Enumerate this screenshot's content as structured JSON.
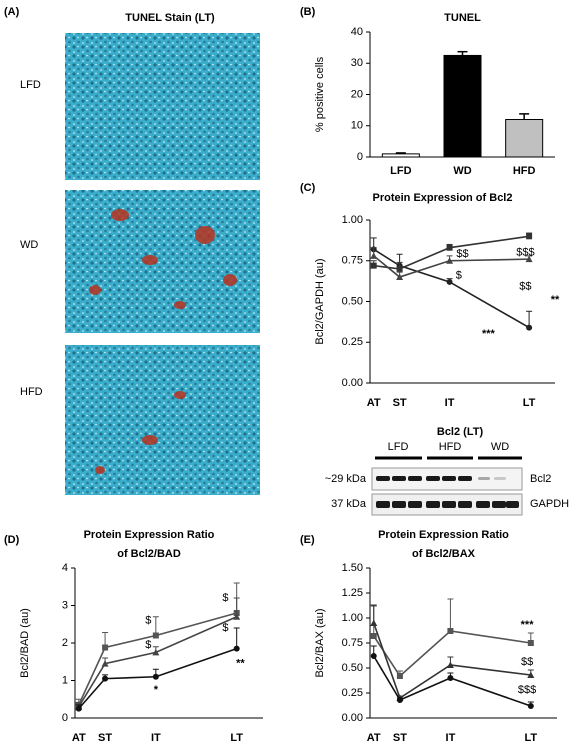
{
  "panel_labels": [
    "(A)",
    "(B)",
    "(C)",
    "(D)",
    "(E)"
  ],
  "tunel_stain": {
    "title": "TUNEL Stain (LT)",
    "rows": [
      "LFD",
      "WD",
      "HFD"
    ]
  },
  "blot": {
    "title": "Bcl2 (LT)",
    "lanes": [
      "LFD",
      "HFD",
      "WD"
    ],
    "rows": [
      {
        "size": "~29 kDa",
        "protein": "Bcl2"
      },
      {
        "size": "37 kDa",
        "protein": "GAPDH"
      }
    ]
  },
  "chart_data": [
    {
      "type": "bar",
      "title": "TUNEL",
      "ylabel": "% positive cells",
      "categories": [
        "LFD",
        "WD",
        "HFD"
      ],
      "values": [
        1,
        32.5,
        12
      ],
      "errors": [
        0.3,
        1.2,
        1.8
      ],
      "colors": [
        "#ffffff",
        "#000000",
        "#c0c0c0"
      ],
      "ylim": [
        0,
        40
      ],
      "yticks": [
        0,
        10,
        20,
        30,
        40
      ]
    },
    {
      "type": "line",
      "title": [
        "Protein Expression of Bcl2"
      ],
      "ylabel": "Bcl2/GAPDH (au)",
      "categories": [
        "AT",
        "ST",
        "IT",
        "LT"
      ],
      "ylim": [
        0,
        1
      ],
      "yticks": [
        {
          "value": 0,
          "label": "0.00"
        },
        {
          "value": 0.25,
          "label": "0.25"
        },
        {
          "value": 0.5,
          "label": "0.50"
        },
        {
          "value": 0.75,
          "label": "0.75"
        },
        {
          "value": 1,
          "label": "1.00"
        }
      ],
      "series": [
        {
          "marker": "circle",
          "color": "#222222",
          "values": [
            0.82,
            0.72,
            0.62,
            0.34
          ],
          "errors": [
            0.07,
            0.07,
            0.02,
            0.1
          ]
        },
        {
          "marker": "square",
          "color": "#333333",
          "values": [
            0.72,
            0.7,
            0.83,
            0.9
          ],
          "errors": [
            0.03,
            0.04,
            0.02,
            0.02
          ]
        },
        {
          "marker": "triangle",
          "color": "#444444",
          "values": [
            0.78,
            0.65,
            0.75,
            0.76
          ],
          "errors": [
            0.05,
            0.03,
            0.03,
            0.02
          ]
        }
      ],
      "annotations": [
        "**",
        "***",
        "$$$",
        "$$",
        "$",
        "$$"
      ]
    },
    {
      "type": "line",
      "title": [
        "Protein Expression Ratio",
        "of Bcl2/BAD"
      ],
      "ylabel": "Bcl2/BAD (au)",
      "categories": [
        "AT",
        "ST",
        "IT",
        "LT"
      ],
      "ylim": [
        0,
        4
      ],
      "yticks": [
        0,
        1,
        2,
        3,
        4
      ],
      "series": [
        {
          "marker": "square",
          "color": "#555555",
          "values": [
            0.35,
            1.88,
            2.2,
            2.8
          ],
          "errors": [
            0.15,
            0.4,
            0.5,
            0.8
          ]
        },
        {
          "marker": "triangle",
          "color": "#444444",
          "values": [
            0.3,
            1.45,
            1.75,
            2.7
          ],
          "errors": [
            0.1,
            0.15,
            0.15,
            0.5
          ]
        },
        {
          "marker": "circle",
          "color": "#111111",
          "values": [
            0.25,
            1.05,
            1.1,
            1.85
          ],
          "errors": [
            0.1,
            0.1,
            0.2,
            0.55
          ]
        }
      ],
      "annotations": [
        "$",
        "$",
        "*",
        "$",
        "$",
        "**"
      ]
    },
    {
      "type": "line",
      "title": [
        "Protein Expression Ratio",
        "of Bcl2/BAX"
      ],
      "ylabel": "Bcl2/BAX (au)",
      "categories": [
        "AT",
        "ST",
        "IT",
        "LT"
      ],
      "ylim": [
        0,
        1.5
      ],
      "yticks": [
        {
          "value": 0,
          "label": "0.00"
        },
        {
          "value": 0.25,
          "label": "0.25"
        },
        {
          "value": 0.5,
          "label": "0.50"
        },
        {
          "value": 0.75,
          "label": "0.75"
        },
        {
          "value": 1,
          "label": "1.00"
        },
        {
          "value": 1.25,
          "label": "1.25"
        },
        {
          "value": 1.5,
          "label": "1.50"
        }
      ],
      "series": [
        {
          "marker": "square",
          "color": "#555555",
          "values": [
            0.82,
            0.42,
            0.87,
            0.75
          ],
          "errors": [
            0.3,
            0.05,
            0.32,
            0.1
          ]
        },
        {
          "marker": "triangle",
          "color": "#333333",
          "values": [
            0.95,
            0.2,
            0.53,
            0.43
          ],
          "errors": [
            0.18,
            0.02,
            0.08,
            0.05
          ]
        },
        {
          "marker": "circle",
          "color": "#111111",
          "values": [
            0.62,
            0.18,
            0.4,
            0.12
          ],
          "errors": [
            0.1,
            0.02,
            0.05,
            0.04
          ]
        }
      ],
      "annotations": [
        "***",
        "$$",
        "$$$"
      ]
    }
  ]
}
